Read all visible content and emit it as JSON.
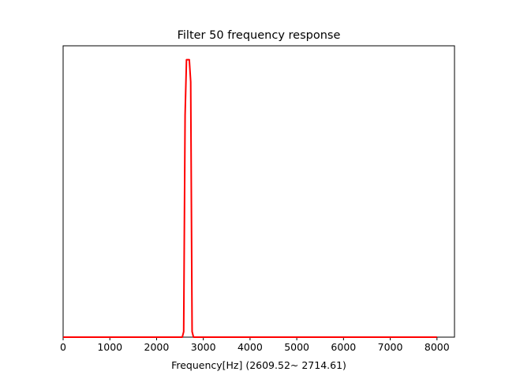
{
  "chart_data": {
    "type": "line",
    "title": "Filter 50 frequency response",
    "xlabel": "Frequency[Hz] (2609.52~ 2714.61)",
    "ylabel": "",
    "xlim": [
      0,
      8375
    ],
    "ylim": [
      0,
      1.05
    ],
    "xticks": [
      0,
      1000,
      2000,
      3000,
      4000,
      5000,
      6000,
      7000,
      8000
    ],
    "xtick_labels": [
      "0",
      "1000",
      "2000",
      "3000",
      "4000",
      "5000",
      "6000",
      "7000",
      "8000"
    ],
    "yticks": [],
    "grid": false,
    "legend": "none",
    "series": [
      {
        "color": "#ff0000",
        "x": [
          0,
          2550,
          2580,
          2610,
          2640,
          2670,
          2700,
          2730,
          2760,
          2790,
          2820,
          8000
        ],
        "y": [
          0,
          0,
          0.02,
          0.8,
          1.0,
          1.0,
          1.0,
          0.92,
          0.02,
          0,
          0,
          0
        ]
      }
    ]
  }
}
